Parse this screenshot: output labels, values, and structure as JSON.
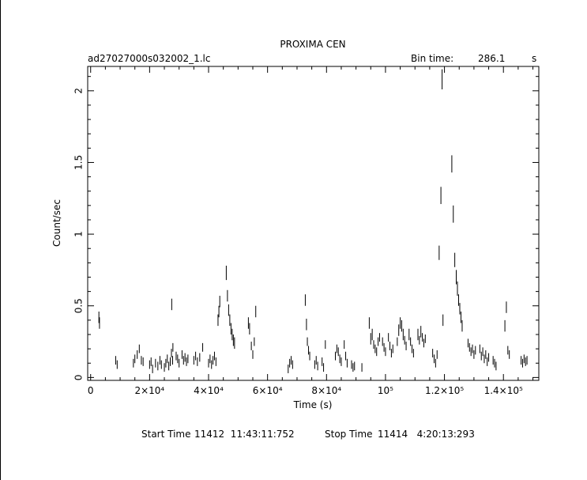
{
  "header": {
    "title": "PROXIMA CEN",
    "filename": "ad27027000s032002_1.lc",
    "bin_time_label": "Bin time:",
    "bin_time_value": "286.1",
    "bin_time_unit": "s"
  },
  "footer": {
    "start_label": "Start Time",
    "start_value": "11412  11:43:11:752",
    "stop_label": "Stop Time",
    "stop_value": "11414   4:20:13:293"
  },
  "chart_data": {
    "type": "scatter",
    "title": "PROXIMA CEN",
    "xlabel": "Time (s)",
    "ylabel": "Count/sec",
    "xlim": [
      -1000,
      152000
    ],
    "ylim": [
      -0.02,
      2.17
    ],
    "grid": false,
    "x_ticks": [
      {
        "value": 0,
        "label": "0"
      },
      {
        "value": 20000,
        "label": "2×10⁴"
      },
      {
        "value": 40000,
        "label": "4×10⁴"
      },
      {
        "value": 60000,
        "label": "6×10⁴"
      },
      {
        "value": 80000,
        "label": "8×10⁴"
      },
      {
        "value": 100000,
        "label": "10⁵"
      },
      {
        "value": 120000,
        "label": "1.2×10⁵"
      },
      {
        "value": 140000,
        "label": "1.4×10⁵"
      }
    ],
    "y_ticks": [
      {
        "value": 0,
        "label": "0"
      },
      {
        "value": 0.5,
        "label": "0.5"
      },
      {
        "value": 1,
        "label": "1"
      },
      {
        "value": 1.5,
        "label": "1.5"
      },
      {
        "value": 2,
        "label": "2"
      }
    ],
    "points": [
      [
        2800,
        0.42,
        0.04
      ],
      [
        3000,
        0.38,
        0.04
      ],
      [
        8500,
        0.12,
        0.03
      ],
      [
        9000,
        0.09,
        0.03
      ],
      [
        14500,
        0.1,
        0.03
      ],
      [
        15000,
        0.13,
        0.03
      ],
      [
        15800,
        0.16,
        0.03
      ],
      [
        16500,
        0.2,
        0.03
      ],
      [
        17200,
        0.12,
        0.03
      ],
      [
        17800,
        0.11,
        0.03
      ],
      [
        20000,
        0.09,
        0.03
      ],
      [
        20500,
        0.11,
        0.03
      ],
      [
        21000,
        0.06,
        0.03
      ],
      [
        22000,
        0.1,
        0.03
      ],
      [
        22800,
        0.08,
        0.03
      ],
      [
        23500,
        0.12,
        0.03
      ],
      [
        24000,
        0.09,
        0.03
      ],
      [
        25000,
        0.07,
        0.03
      ],
      [
        25500,
        0.1,
        0.03
      ],
      [
        26000,
        0.13,
        0.03
      ],
      [
        26500,
        0.08,
        0.03
      ],
      [
        27000,
        0.11,
        0.03
      ],
      [
        27400,
        0.17,
        0.03
      ],
      [
        27800,
        0.12,
        0.03
      ],
      [
        27500,
        0.51,
        0.04
      ],
      [
        27900,
        0.21,
        0.03
      ],
      [
        29000,
        0.15,
        0.03
      ],
      [
        29500,
        0.13,
        0.03
      ],
      [
        30000,
        0.1,
        0.03
      ],
      [
        31000,
        0.16,
        0.03
      ],
      [
        31500,
        0.12,
        0.03
      ],
      [
        32000,
        0.14,
        0.03
      ],
      [
        32500,
        0.11,
        0.03
      ],
      [
        33000,
        0.13,
        0.03
      ],
      [
        35000,
        0.12,
        0.03
      ],
      [
        35600,
        0.15,
        0.03
      ],
      [
        36200,
        0.11,
        0.03
      ],
      [
        37000,
        0.14,
        0.03
      ],
      [
        38000,
        0.21,
        0.03
      ],
      [
        40000,
        0.1,
        0.03
      ],
      [
        40500,
        0.13,
        0.03
      ],
      [
        41000,
        0.09,
        0.03
      ],
      [
        41500,
        0.12,
        0.03
      ],
      [
        42000,
        0.15,
        0.03
      ],
      [
        42500,
        0.11,
        0.03
      ],
      [
        43200,
        0.4,
        0.04
      ],
      [
        43500,
        0.46,
        0.04
      ],
      [
        43800,
        0.53,
        0.04
      ],
      [
        46000,
        0.73,
        0.05
      ],
      [
        46400,
        0.57,
        0.04
      ],
      [
        46800,
        0.47,
        0.04
      ],
      [
        47200,
        0.4,
        0.04
      ],
      [
        47600,
        0.34,
        0.04
      ],
      [
        48000,
        0.3,
        0.04
      ],
      [
        48400,
        0.26,
        0.04
      ],
      [
        48800,
        0.24,
        0.04
      ],
      [
        53500,
        0.38,
        0.04
      ],
      [
        53900,
        0.34,
        0.04
      ],
      [
        54500,
        0.22,
        0.03
      ],
      [
        55000,
        0.16,
        0.03
      ],
      [
        55500,
        0.25,
        0.03
      ],
      [
        56000,
        0.46,
        0.04
      ],
      [
        67000,
        0.06,
        0.03
      ],
      [
        67500,
        0.1,
        0.03
      ],
      [
        68000,
        0.12,
        0.03
      ],
      [
        68500,
        0.09,
        0.03
      ],
      [
        72800,
        0.54,
        0.04
      ],
      [
        73200,
        0.37,
        0.04
      ],
      [
        73500,
        0.25,
        0.03
      ],
      [
        73900,
        0.19,
        0.03
      ],
      [
        74300,
        0.15,
        0.03
      ],
      [
        76000,
        0.09,
        0.03
      ],
      [
        76500,
        0.12,
        0.03
      ],
      [
        77000,
        0.08,
        0.03
      ],
      [
        78500,
        0.11,
        0.03
      ],
      [
        79000,
        0.07,
        0.03
      ],
      [
        79600,
        0.23,
        0.03
      ],
      [
        83000,
        0.15,
        0.03
      ],
      [
        83500,
        0.2,
        0.03
      ],
      [
        84000,
        0.18,
        0.03
      ],
      [
        84500,
        0.13,
        0.03
      ],
      [
        85000,
        0.11,
        0.03
      ],
      [
        86000,
        0.23,
        0.03
      ],
      [
        86500,
        0.15,
        0.03
      ],
      [
        87000,
        0.1,
        0.03
      ],
      [
        88500,
        0.09,
        0.03
      ],
      [
        89000,
        0.07,
        0.03
      ],
      [
        89500,
        0.08,
        0.03
      ],
      [
        92000,
        0.07,
        0.03
      ],
      [
        94500,
        0.38,
        0.04
      ],
      [
        95000,
        0.27,
        0.04
      ],
      [
        95500,
        0.3,
        0.04
      ],
      [
        96000,
        0.23,
        0.03
      ],
      [
        96500,
        0.2,
        0.03
      ],
      [
        97000,
        0.18,
        0.03
      ],
      [
        97500,
        0.25,
        0.03
      ],
      [
        98000,
        0.28,
        0.03
      ],
      [
        99000,
        0.25,
        0.03
      ],
      [
        99500,
        0.21,
        0.03
      ],
      [
        100000,
        0.18,
        0.03
      ],
      [
        101000,
        0.28,
        0.03
      ],
      [
        101500,
        0.22,
        0.03
      ],
      [
        102000,
        0.17,
        0.03
      ],
      [
        102500,
        0.2,
        0.03
      ],
      [
        104000,
        0.25,
        0.03
      ],
      [
        104500,
        0.33,
        0.04
      ],
      [
        105000,
        0.38,
        0.04
      ],
      [
        105500,
        0.36,
        0.04
      ],
      [
        106000,
        0.3,
        0.04
      ],
      [
        106500,
        0.26,
        0.03
      ],
      [
        107000,
        0.22,
        0.03
      ],
      [
        108000,
        0.3,
        0.04
      ],
      [
        108500,
        0.25,
        0.03
      ],
      [
        109000,
        0.2,
        0.03
      ],
      [
        109500,
        0.17,
        0.03
      ],
      [
        111000,
        0.3,
        0.04
      ],
      [
        111500,
        0.26,
        0.03
      ],
      [
        112000,
        0.32,
        0.04
      ],
      [
        112500,
        0.28,
        0.03
      ],
      [
        113000,
        0.24,
        0.03
      ],
      [
        113500,
        0.27,
        0.03
      ],
      [
        116000,
        0.17,
        0.03
      ],
      [
        116500,
        0.13,
        0.03
      ],
      [
        117000,
        0.1,
        0.03
      ],
      [
        117500,
        0.16,
        0.03
      ],
      [
        118200,
        0.87,
        0.05
      ],
      [
        118800,
        1.27,
        0.06
      ],
      [
        119200,
        2.08,
        0.07
      ],
      [
        119500,
        0.4,
        0.04
      ],
      [
        122500,
        1.49,
        0.06
      ],
      [
        123000,
        1.14,
        0.06
      ],
      [
        123500,
        0.82,
        0.05
      ],
      [
        124000,
        0.7,
        0.05
      ],
      [
        124400,
        0.62,
        0.05
      ],
      [
        124800,
        0.54,
        0.04
      ],
      [
        125200,
        0.48,
        0.04
      ],
      [
        125600,
        0.42,
        0.04
      ],
      [
        126000,
        0.36,
        0.04
      ],
      [
        128000,
        0.24,
        0.03
      ],
      [
        128500,
        0.21,
        0.03
      ],
      [
        129000,
        0.18,
        0.03
      ],
      [
        129500,
        0.2,
        0.03
      ],
      [
        130000,
        0.16,
        0.03
      ],
      [
        130500,
        0.19,
        0.03
      ],
      [
        132000,
        0.2,
        0.03
      ],
      [
        132500,
        0.15,
        0.03
      ],
      [
        133000,
        0.18,
        0.03
      ],
      [
        133500,
        0.13,
        0.03
      ],
      [
        134000,
        0.16,
        0.03
      ],
      [
        134500,
        0.11,
        0.03
      ],
      [
        135000,
        0.14,
        0.03
      ],
      [
        136500,
        0.12,
        0.03
      ],
      [
        137000,
        0.1,
        0.03
      ],
      [
        137500,
        0.08,
        0.03
      ],
      [
        140500,
        0.36,
        0.04
      ],
      [
        141000,
        0.49,
        0.04
      ],
      [
        141500,
        0.19,
        0.03
      ],
      [
        142000,
        0.16,
        0.03
      ],
      [
        146000,
        0.12,
        0.03
      ],
      [
        146500,
        0.1,
        0.03
      ],
      [
        147000,
        0.13,
        0.03
      ],
      [
        147500,
        0.11,
        0.03
      ],
      [
        148000,
        0.12,
        0.03
      ]
    ]
  }
}
